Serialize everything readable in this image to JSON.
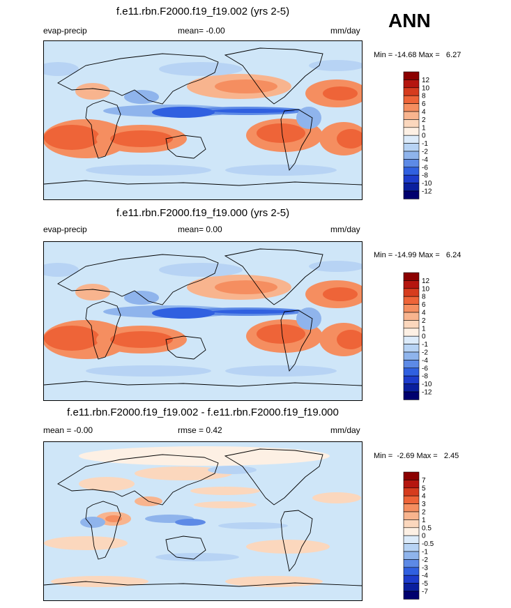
{
  "season": "ANN",
  "colors": {
    "map_background": "#cfe6f8",
    "palette": [
      "#8b0000",
      "#b5160f",
      "#d63c1e",
      "#ee6438",
      "#f58e60",
      "#f8b48e",
      "#fbd7bd",
      "#fdf0e4",
      "#dcebfa",
      "#b7d3f4",
      "#8fb4ec",
      "#5d8ae6",
      "#3060e0",
      "#1d3ccc",
      "#0a1f9e",
      "#00006e"
    ]
  },
  "panels": [
    {
      "title": "f.e11.rbn.F2000.f19_f19.002 (yrs 2-5)",
      "left_label": "evap-precip",
      "center_label": "mean=  -0.00",
      "right_label": "mm/day",
      "minmax": "Min = -14.68 Max =   6.27",
      "colorbar_labels": [
        "12",
        "10",
        "8",
        "6",
        "4",
        "2",
        "1",
        "0",
        "-1",
        "-2",
        "-4",
        "-6",
        "-8",
        "-10",
        "-12"
      ]
    },
    {
      "title": "f.e11.rbn.F2000.f19_f19.000 (yrs 2-5)",
      "left_label": "evap-precip",
      "center_label": "mean=   0.00",
      "right_label": "mm/day",
      "minmax": "Min = -14.99 Max =   6.24",
      "colorbar_labels": [
        "12",
        "10",
        "8",
        "6",
        "4",
        "2",
        "1",
        "0",
        "-1",
        "-2",
        "-4",
        "-6",
        "-8",
        "-10",
        "-12"
      ]
    },
    {
      "title": "f.e11.rbn.F2000.f19_f19.002 - f.e11.rbn.F2000.f19_f19.000",
      "left_label": "mean =  -0.00",
      "center_label": "rmse =   0.42",
      "right_label": "mm/day",
      "minmax": "Min =  -2.69 Max =   2.45",
      "colorbar_labels": [
        "7",
        "5",
        "4",
        "3",
        "2",
        "1",
        "0.5",
        "0",
        "-0.5",
        "-1",
        "-2",
        "-3",
        "-4",
        "-5",
        "-7"
      ]
    }
  ],
  "chart_data": [
    {
      "type": "heatmap",
      "title": "f.e11.rbn.F2000.f19_f19.002 (yrs 2-5)",
      "variable": "evap-precip",
      "units": "mm/day",
      "mean": -0.0,
      "min": -14.68,
      "max": 6.27,
      "contour_levels": [
        -12,
        -10,
        -8,
        -6,
        -4,
        -2,
        -1,
        0,
        1,
        2,
        4,
        6,
        8,
        10,
        12
      ]
    },
    {
      "type": "heatmap",
      "title": "f.e11.rbn.F2000.f19_f19.000 (yrs 2-5)",
      "variable": "evap-precip",
      "units": "mm/day",
      "mean": 0.0,
      "min": -14.99,
      "max": 6.24,
      "contour_levels": [
        -12,
        -10,
        -8,
        -6,
        -4,
        -2,
        -1,
        0,
        1,
        2,
        4,
        6,
        8,
        10,
        12
      ]
    },
    {
      "type": "heatmap",
      "title": "f.e11.rbn.F2000.f19_f19.002 - f.e11.rbn.F2000.f19_f19.000",
      "units": "mm/day",
      "mean": -0.0,
      "rmse": 0.42,
      "min": -2.69,
      "max": 2.45,
      "contour_levels": [
        -7,
        -5,
        -4,
        -3,
        -2,
        -1,
        -0.5,
        0,
        0.5,
        1,
        2,
        3,
        4,
        5,
        7
      ]
    }
  ]
}
